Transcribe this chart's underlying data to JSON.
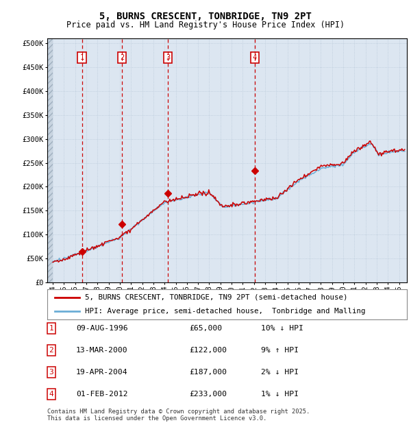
{
  "title": "5, BURNS CRESCENT, TONBRIDGE, TN9 2PT",
  "subtitle": "Price paid vs. HM Land Registry's House Price Index (HPI)",
  "ylabel_ticks": [
    "£0",
    "£50K",
    "£100K",
    "£150K",
    "£200K",
    "£250K",
    "£300K",
    "£350K",
    "£400K",
    "£450K",
    "£500K"
  ],
  "ytick_values": [
    0,
    50000,
    100000,
    150000,
    200000,
    250000,
    300000,
    350000,
    400000,
    450000,
    500000
  ],
  "ylim": [
    0,
    510000
  ],
  "xlim_start": 1993.5,
  "xlim_end": 2025.7,
  "sale_dates": [
    1996.6,
    2000.2,
    2004.3,
    2012.08
  ],
  "sale_prices": [
    65000,
    122000,
    187000,
    233000
  ],
  "sale_labels": [
    "1",
    "2",
    "3",
    "4"
  ],
  "legend_line1": "5, BURNS CRESCENT, TONBRIDGE, TN9 2PT (semi-detached house)",
  "legend_line2": "HPI: Average price, semi-detached house,  Tonbridge and Malling",
  "table_data": [
    [
      "1",
      "09-AUG-1996",
      "£65,000",
      "10% ↓ HPI"
    ],
    [
      "2",
      "13-MAR-2000",
      "£122,000",
      "9% ↑ HPI"
    ],
    [
      "3",
      "19-APR-2004",
      "£187,000",
      "2% ↓ HPI"
    ],
    [
      "4",
      "01-FEB-2012",
      "£233,000",
      "1% ↓ HPI"
    ]
  ],
  "footer": "Contains HM Land Registry data © Crown copyright and database right 2025.\nThis data is licensed under the Open Government Licence v3.0.",
  "hpi_color": "#6baed6",
  "price_color": "#cc0000",
  "plot_bg_color": "#dce6f1",
  "fig_bg_color": "#ffffff",
  "grid_color": "#b8c8d8",
  "hatch_bg": "#c8d4e0"
}
